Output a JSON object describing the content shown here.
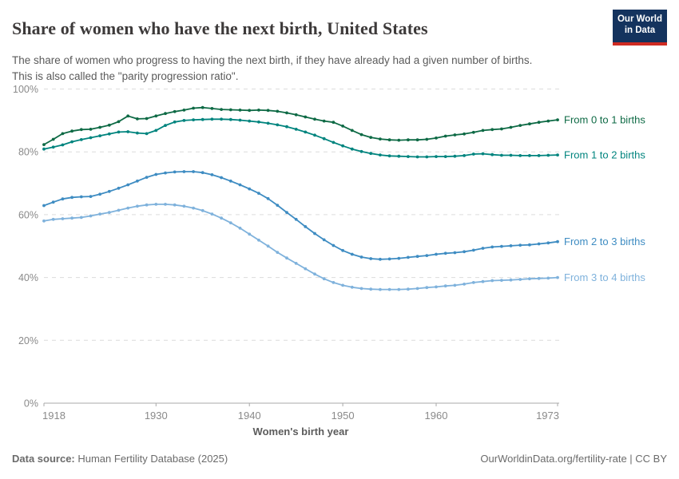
{
  "header": {
    "title": "Share of women who have the next birth, United States",
    "subtitle_line1": "The share of women who progress to having the next birth, if they have already had a given number of births.",
    "subtitle_line2": "This is also called the \"parity progression ratio\".",
    "logo": {
      "line1": "Our World",
      "line2": "in Data"
    }
  },
  "footer": {
    "datasource_label": "Data source:",
    "datasource_text": " Human Fertility Database (2025)",
    "attribution": "OurWorldinData.org/fertility-rate | CC BY"
  },
  "chart_data": {
    "type": "line",
    "title": "Share of women who have the next birth, United States",
    "xlabel": "Women's birth year",
    "ylabel": "",
    "xlim": [
      1918,
      1973
    ],
    "ylim": [
      0,
      100
    ],
    "grid": "horizontal-dashed",
    "legend_position": "right-of-line-ends",
    "x_ticks": [
      1918,
      1930,
      1940,
      1950,
      1960,
      1973
    ],
    "y_grid_values": [
      0,
      20,
      40,
      60,
      80,
      100
    ],
    "y_ticks": [
      "0%",
      "20%",
      "40%",
      "60%",
      "80%",
      "100%"
    ],
    "colors": {
      "grid": "#dcdcdc",
      "axis": "#a8a8a8",
      "tick_text": "#8a8a8a"
    },
    "x": [
      1918,
      1919,
      1920,
      1921,
      1922,
      1923,
      1924,
      1925,
      1926,
      1927,
      1928,
      1929,
      1930,
      1931,
      1932,
      1933,
      1934,
      1935,
      1936,
      1937,
      1938,
      1939,
      1940,
      1941,
      1942,
      1943,
      1944,
      1945,
      1946,
      1947,
      1948,
      1949,
      1950,
      1951,
      1952,
      1953,
      1954,
      1955,
      1956,
      1957,
      1958,
      1959,
      1960,
      1961,
      1962,
      1963,
      1964,
      1965,
      1966,
      1967,
      1968,
      1969,
      1970,
      1971,
      1972,
      1973
    ],
    "series": [
      {
        "name": "From 0 to 1 births",
        "color": "#0e6a45",
        "values": [
          82.3,
          84.0,
          85.8,
          86.6,
          87.1,
          87.2,
          87.8,
          88.5,
          89.6,
          91.4,
          90.5,
          90.6,
          91.4,
          92.2,
          92.8,
          93.3,
          93.9,
          94.1,
          93.8,
          93.5,
          93.4,
          93.3,
          93.2,
          93.3,
          93.2,
          92.9,
          92.4,
          91.8,
          91.1,
          90.4,
          89.8,
          89.4,
          88.2,
          86.8,
          85.5,
          84.6,
          84.1,
          83.8,
          83.7,
          83.8,
          83.8,
          84.0,
          84.4,
          85.0,
          85.4,
          85.7,
          86.2,
          86.8,
          87.1,
          87.3,
          87.8,
          88.4,
          88.9,
          89.4,
          89.8,
          90.2
        ]
      },
      {
        "name": "From 1 to 2 births",
        "color": "#00847e",
        "values": [
          80.9,
          81.5,
          82.2,
          83.2,
          83.9,
          84.5,
          85.1,
          85.7,
          86.3,
          86.4,
          86.0,
          85.8,
          86.8,
          88.4,
          89.5,
          90.0,
          90.2,
          90.3,
          90.4,
          90.4,
          90.3,
          90.1,
          89.8,
          89.5,
          89.1,
          88.6,
          88.0,
          87.2,
          86.3,
          85.3,
          84.2,
          83.0,
          81.9,
          80.9,
          80.1,
          79.5,
          79.0,
          78.7,
          78.6,
          78.5,
          78.4,
          78.4,
          78.5,
          78.5,
          78.6,
          78.8,
          79.3,
          79.4,
          79.1,
          78.9,
          78.9,
          78.8,
          78.8,
          78.8,
          78.9,
          79.0
        ]
      },
      {
        "name": "From 2 to 3 births",
        "color": "#3e8cc2",
        "values": [
          62.9,
          64.0,
          65.0,
          65.5,
          65.7,
          65.8,
          66.5,
          67.4,
          68.4,
          69.5,
          70.7,
          71.9,
          72.8,
          73.3,
          73.6,
          73.7,
          73.7,
          73.4,
          72.7,
          71.8,
          70.7,
          69.5,
          68.2,
          66.8,
          65.1,
          63.0,
          60.7,
          58.5,
          56.2,
          54.0,
          52.0,
          50.2,
          48.6,
          47.4,
          46.5,
          46.0,
          45.8,
          45.9,
          46.1,
          46.4,
          46.7,
          47.0,
          47.4,
          47.7,
          47.9,
          48.2,
          48.7,
          49.3,
          49.7,
          49.9,
          50.1,
          50.3,
          50.4,
          50.7,
          51.0,
          51.4
        ]
      },
      {
        "name": "From 3 to 4 births",
        "color": "#7fb2dc",
        "values": [
          58.0,
          58.5,
          58.7,
          58.9,
          59.1,
          59.6,
          60.2,
          60.7,
          61.4,
          62.1,
          62.7,
          63.1,
          63.3,
          63.3,
          63.1,
          62.7,
          62.1,
          61.3,
          60.2,
          58.9,
          57.4,
          55.7,
          53.8,
          51.9,
          50.0,
          48.0,
          46.2,
          44.5,
          42.8,
          41.1,
          39.6,
          38.4,
          37.5,
          36.9,
          36.5,
          36.3,
          36.2,
          36.2,
          36.2,
          36.3,
          36.5,
          36.8,
          37.0,
          37.3,
          37.5,
          37.9,
          38.4,
          38.7,
          39.0,
          39.1,
          39.2,
          39.4,
          39.6,
          39.7,
          39.8,
          40.0
        ]
      }
    ]
  }
}
